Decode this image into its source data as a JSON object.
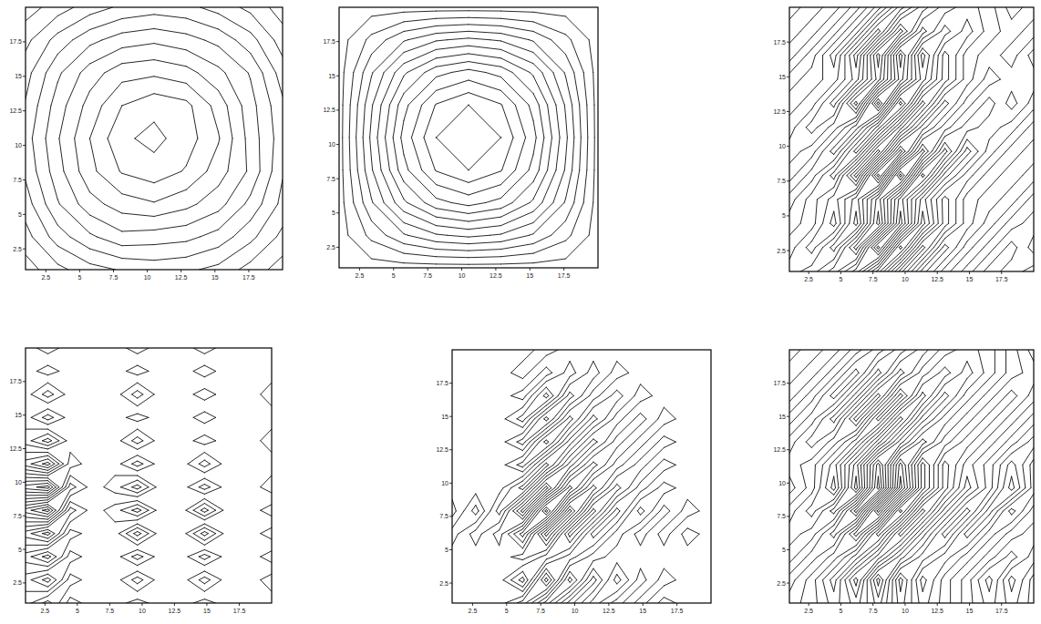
{
  "chart_data": [
    {
      "type": "contour",
      "xlim": [
        1,
        20
      ],
      "ylim": [
        1,
        20
      ],
      "xticks": [
        2.5,
        5,
        7.5,
        10,
        12.5,
        15,
        17.5
      ],
      "yticks": [
        2.5,
        5,
        7.5,
        10,
        12.5,
        15,
        17.5
      ],
      "levels": [
        0.5,
        1.5,
        2.5,
        3.5,
        4.5,
        5.5,
        6.5,
        7.5,
        8.5,
        9.5
      ],
      "z": [
        [
          0,
          1.2,
          2.1,
          2.6,
          2.9,
          2.7,
          2.2,
          1.1,
          0
        ],
        [
          1.1,
          3.0,
          4.3,
          5.2,
          5.0,
          4.8,
          4.1,
          2.8,
          1.2
        ],
        [
          2.0,
          4.4,
          6.1,
          7.0,
          7.4,
          6.8,
          5.9,
          4.2,
          2.2
        ],
        [
          2.7,
          5.1,
          7.2,
          8.6,
          9.1,
          8.4,
          7.0,
          5.3,
          2.6
        ],
        [
          3.0,
          5.4,
          7.5,
          9.3,
          9.8,
          9.0,
          7.6,
          5.1,
          2.9
        ],
        [
          2.6,
          5.0,
          6.9,
          8.5,
          9.2,
          8.8,
          7.1,
          4.9,
          2.7
        ],
        [
          2.1,
          4.3,
          6.0,
          7.1,
          7.3,
          6.9,
          5.8,
          4.4,
          2.0
        ],
        [
          1.2,
          2.9,
          4.2,
          5.0,
          5.3,
          4.9,
          4.2,
          2.9,
          1.0
        ],
        [
          0,
          1.0,
          2.0,
          2.7,
          3.0,
          2.8,
          2.1,
          1.2,
          0
        ]
      ]
    },
    {
      "type": "contour",
      "xlim": [
        1,
        20
      ],
      "ylim": [
        1,
        20
      ],
      "xticks": [
        2.5,
        5,
        7.5,
        10,
        12.5,
        15,
        17.5
      ],
      "yticks": [
        2.5,
        5,
        7.5,
        10,
        12.5,
        15,
        17.5
      ],
      "levels": [
        0.4,
        1.2,
        2,
        2.8,
        3.6,
        4.4,
        5.2,
        6,
        6.8,
        7.6,
        8.4,
        9.2
      ],
      "z": [
        [
          0,
          0,
          0,
          0,
          0,
          0,
          0,
          0,
          0
        ],
        [
          0,
          1.44,
          2.7,
          3.5,
          3.8,
          3.5,
          2.7,
          1.44,
          0
        ],
        [
          0,
          2.7,
          5.04,
          6.53,
          7.1,
          6.53,
          5.04,
          2.7,
          0
        ],
        [
          0,
          3.5,
          6.53,
          8.46,
          9.2,
          8.46,
          6.53,
          3.5,
          0
        ],
        [
          0,
          3.8,
          7.1,
          9.2,
          10,
          9.2,
          7.1,
          3.8,
          0
        ],
        [
          0,
          3.5,
          6.53,
          8.46,
          9.2,
          8.46,
          6.53,
          3.5,
          0
        ],
        [
          0,
          2.7,
          5.04,
          6.53,
          7.1,
          6.53,
          5.04,
          2.7,
          0
        ],
        [
          0,
          1.44,
          2.7,
          3.5,
          3.8,
          3.5,
          2.7,
          1.44,
          0
        ],
        [
          0,
          0,
          0,
          0,
          0,
          0,
          0,
          0,
          0
        ]
      ]
    },
    {
      "type": "contour",
      "xlim": [
        1,
        20
      ],
      "ylim": [
        1,
        20
      ],
      "xticks": [
        2.5,
        5,
        7.5,
        10,
        12.5,
        15,
        17.5
      ],
      "yticks": [
        2.5,
        5,
        7.5,
        10,
        12.5,
        15,
        17.5
      ],
      "levels": [
        -4.5,
        -3.5,
        -2.5,
        -1.5,
        -0.5,
        0.5,
        1.5,
        2.5,
        3.5,
        4.5
      ],
      "z": [
        [
          0,
          1,
          -1,
          2,
          -3,
          3,
          -2,
          1,
          -1,
          1,
          0,
          1
        ],
        [
          1,
          -1,
          2,
          -3,
          5,
          -4,
          3,
          -2,
          1,
          -1,
          1,
          -1
        ],
        [
          0,
          1,
          -2,
          3,
          -4,
          4,
          -3,
          2,
          -1,
          1,
          -1,
          0
        ],
        [
          -1,
          1,
          -1,
          2,
          -3,
          3,
          -2,
          2,
          -1,
          0,
          1,
          -1
        ],
        [
          1,
          -1,
          2,
          -4,
          5,
          -5,
          4,
          -2,
          1,
          -1,
          0,
          1
        ],
        [
          0,
          1,
          -2,
          3,
          -4,
          4,
          -3,
          3,
          -2,
          1,
          -1,
          0
        ],
        [
          1,
          -1,
          1,
          -2,
          3,
          -3,
          2,
          -1,
          1,
          0,
          1,
          -1
        ],
        [
          0,
          1,
          -2,
          4,
          -5,
          4,
          -3,
          2,
          -1,
          1,
          -1,
          1
        ],
        [
          -1,
          0,
          1,
          -2,
          3,
          -3,
          2,
          -2,
          1,
          -1,
          0,
          0
        ],
        [
          1,
          -1,
          2,
          -3,
          4,
          -4,
          3,
          -2,
          1,
          0,
          1,
          -1
        ],
        [
          0,
          1,
          -1,
          2,
          -3,
          3,
          -2,
          1,
          -1,
          1,
          0,
          1
        ],
        [
          1,
          0,
          1,
          -1,
          2,
          -2,
          1,
          -1,
          0,
          1,
          -1,
          0
        ]
      ]
    },
    {
      "type": "contour",
      "xlim": [
        1,
        20
      ],
      "ylim": [
        1,
        20
      ],
      "xticks": [
        2.5,
        5,
        7.5,
        10,
        12.5,
        15,
        17.5
      ],
      "yticks": [
        2.5,
        5,
        7.5,
        10,
        12.5,
        15,
        17.5
      ],
      "levels": [
        -4.5,
        -3.5,
        -2.5,
        -1.5,
        -0.5,
        0.5,
        1.5,
        2.5,
        3.5,
        4.5
      ],
      "z": [
        [
          0,
          -2,
          1,
          0,
          0,
          -1,
          0,
          0,
          -1,
          0,
          0,
          0
        ],
        [
          1,
          3,
          -1,
          0,
          0,
          2,
          0,
          0,
          2,
          0,
          0,
          1
        ],
        [
          -1,
          -3,
          1,
          0,
          0,
          -2,
          0,
          0,
          -2,
          0,
          0,
          -1
        ],
        [
          2,
          4,
          -1,
          0,
          0,
          3,
          0,
          0,
          3,
          0,
          0,
          1
        ],
        [
          -3,
          -5,
          2,
          0,
          -1,
          -3,
          0,
          0,
          -3,
          0,
          0,
          -1
        ],
        [
          4,
          5,
          -2,
          0,
          1,
          3,
          0,
          0,
          2,
          0,
          0,
          1
        ],
        [
          -2,
          -4,
          1,
          0,
          0,
          -2,
          0,
          0,
          -2,
          0,
          0,
          0
        ],
        [
          1,
          3,
          0,
          0,
          0,
          2,
          0,
          0,
          1,
          0,
          0,
          1
        ],
        [
          0,
          -2,
          0,
          0,
          0,
          -1,
          0,
          0,
          -1,
          0,
          0,
          0
        ],
        [
          0,
          2,
          0,
          0,
          0,
          2,
          0,
          0,
          1,
          0,
          0,
          1
        ],
        [
          0,
          -1,
          0,
          0,
          0,
          -1,
          0,
          0,
          -1,
          0,
          0,
          0
        ],
        [
          0,
          1,
          0,
          0,
          0,
          1,
          0,
          0,
          1,
          0,
          0,
          0
        ]
      ]
    },
    {
      "type": "contour",
      "xlim": [
        1,
        20
      ],
      "ylim": [
        1,
        20
      ],
      "xticks": [
        2.5,
        5,
        7.5,
        10,
        12.5,
        15,
        17.5
      ],
      "yticks": [
        2.5,
        5,
        7.5,
        10,
        12.5,
        15,
        17.5
      ],
      "levels": [
        -4.5,
        -3.5,
        -2.5,
        -1.5,
        -0.5,
        0.5,
        1.5,
        2.5,
        3.5,
        4.5
      ],
      "z": [
        [
          0,
          0,
          0,
          2,
          -2,
          2,
          -1,
          1,
          -1,
          1,
          0,
          0
        ],
        [
          0,
          0,
          0,
          -3,
          4,
          -3,
          2,
          -2,
          1,
          -1,
          0,
          0
        ],
        [
          0,
          0,
          0,
          1,
          -1,
          1,
          -1,
          0,
          0,
          0,
          0,
          0
        ],
        [
          1,
          -1,
          1,
          -3,
          4,
          -3,
          2,
          -1,
          1,
          -1,
          1,
          0
        ],
        [
          -1,
          2,
          -2,
          4,
          -5,
          4,
          -3,
          2,
          -2,
          1,
          -1,
          0
        ],
        [
          0,
          0,
          0,
          -3,
          4,
          -3,
          2,
          -2,
          1,
          -1,
          0,
          0
        ],
        [
          0,
          0,
          0,
          2,
          -3,
          2,
          -2,
          1,
          -1,
          1,
          0,
          0
        ],
        [
          0,
          0,
          0,
          -2,
          3,
          -2,
          2,
          -1,
          1,
          -1,
          0,
          0
        ],
        [
          0,
          0,
          0,
          2,
          -3,
          2,
          -2,
          1,
          -1,
          1,
          0,
          0
        ],
        [
          0,
          0,
          0,
          -1,
          3,
          -2,
          1,
          -1,
          1,
          0,
          0,
          0
        ],
        [
          0,
          0,
          0,
          1,
          -1,
          1,
          -1,
          1,
          0,
          0,
          0,
          0
        ],
        [
          0,
          0,
          0,
          0,
          1,
          0,
          0,
          0,
          0,
          0,
          0,
          0
        ]
      ]
    },
    {
      "type": "contour",
      "xlim": [
        1,
        20
      ],
      "ylim": [
        1,
        20
      ],
      "xticks": [
        2.5,
        5,
        7.5,
        10,
        12.5,
        15,
        17.5
      ],
      "yticks": [
        2.5,
        5,
        7.5,
        10,
        12.5,
        15,
        17.5
      ],
      "levels": [
        -4.5,
        -3.5,
        -2.5,
        -1.5,
        -0.5,
        0.5,
        1.5,
        2.5,
        3.5,
        4.5
      ],
      "z": [
        [
          0,
          1,
          -1,
          1,
          -2,
          2,
          -1,
          1,
          -1,
          1,
          -1,
          1
        ],
        [
          -1,
          1,
          -2,
          3,
          -4,
          3,
          -2,
          1,
          -1,
          2,
          -2,
          1
        ],
        [
          1,
          -1,
          1,
          -2,
          2,
          -2,
          1,
          -1,
          1,
          -1,
          1,
          -1
        ],
        [
          0,
          1,
          -2,
          3,
          -3,
          3,
          -2,
          2,
          -2,
          1,
          -1,
          0
        ],
        [
          1,
          -1,
          2,
          -4,
          5,
          -4,
          3,
          -2,
          2,
          -2,
          2,
          -1
        ],
        [
          -1,
          1,
          -3,
          4,
          -5,
          5,
          -3,
          2,
          -2,
          1,
          -3,
          1
        ],
        [
          0,
          1,
          -2,
          3,
          -4,
          4,
          -3,
          2,
          -1,
          1,
          -2,
          1
        ],
        [
          1,
          -1,
          1,
          -2,
          3,
          -2,
          2,
          -1,
          1,
          -1,
          1,
          -1
        ],
        [
          -1,
          1,
          -2,
          3,
          -3,
          3,
          -2,
          1,
          -1,
          1,
          -1,
          1
        ],
        [
          1,
          -1,
          2,
          -2,
          3,
          -3,
          2,
          -2,
          1,
          -1,
          1,
          -1
        ],
        [
          0,
          1,
          -1,
          2,
          -2,
          2,
          -1,
          1,
          -1,
          1,
          -1,
          0
        ],
        [
          1,
          0,
          1,
          -1,
          1,
          -1,
          1,
          -1,
          0,
          1,
          -1,
          1
        ]
      ]
    }
  ]
}
